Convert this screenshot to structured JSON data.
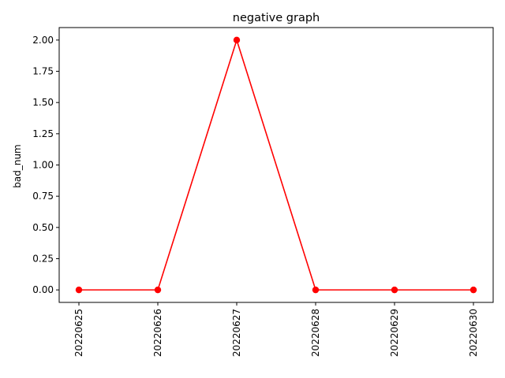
{
  "chart_data": {
    "type": "line",
    "title": "negative graph",
    "xlabel": "",
    "ylabel": "bad_num",
    "categories": [
      "20220625",
      "20220626",
      "20220627",
      "20220628",
      "20220629",
      "20220630"
    ],
    "series": [
      {
        "values": [
          0,
          0,
          2,
          0,
          0,
          0
        ],
        "color": "#ff0000",
        "marker": "circle"
      }
    ],
    "yticks": [
      "0.00",
      "0.25",
      "0.50",
      "0.75",
      "1.00",
      "1.25",
      "1.50",
      "1.75",
      "2.00"
    ],
    "ylim": [
      -0.1,
      2.1
    ],
    "grid": false,
    "legend": "none"
  }
}
